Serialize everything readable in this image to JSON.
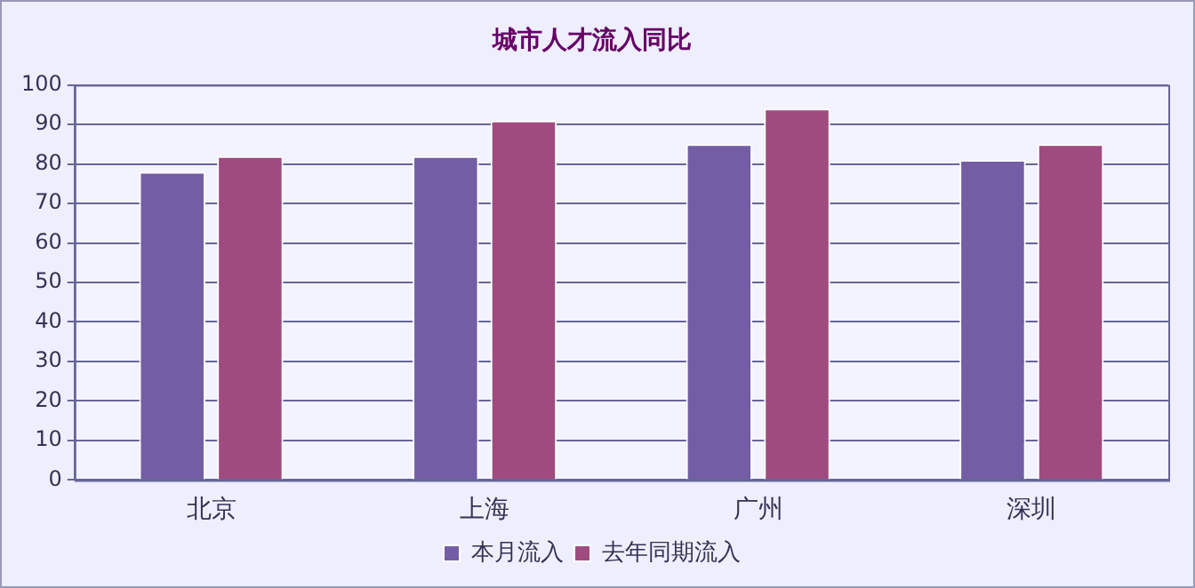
{
  "chart_data": {
    "type": "bar",
    "title": "城市人才流入同比",
    "categories": [
      "北京",
      "上海",
      "广州",
      "深圳"
    ],
    "series": [
      {
        "name": "本月流入",
        "color": "#735ea5",
        "values": [
          78,
          82,
          85,
          81
        ]
      },
      {
        "name": "去年同期流入",
        "color": "#a04b80",
        "values": [
          82,
          91,
          94,
          85
        ]
      }
    ],
    "ylim": [
      0,
      100
    ],
    "yticks": [
      0,
      10,
      20,
      30,
      40,
      50,
      60,
      70,
      80,
      90,
      100
    ],
    "grid": "y",
    "legend": "bottom"
  }
}
